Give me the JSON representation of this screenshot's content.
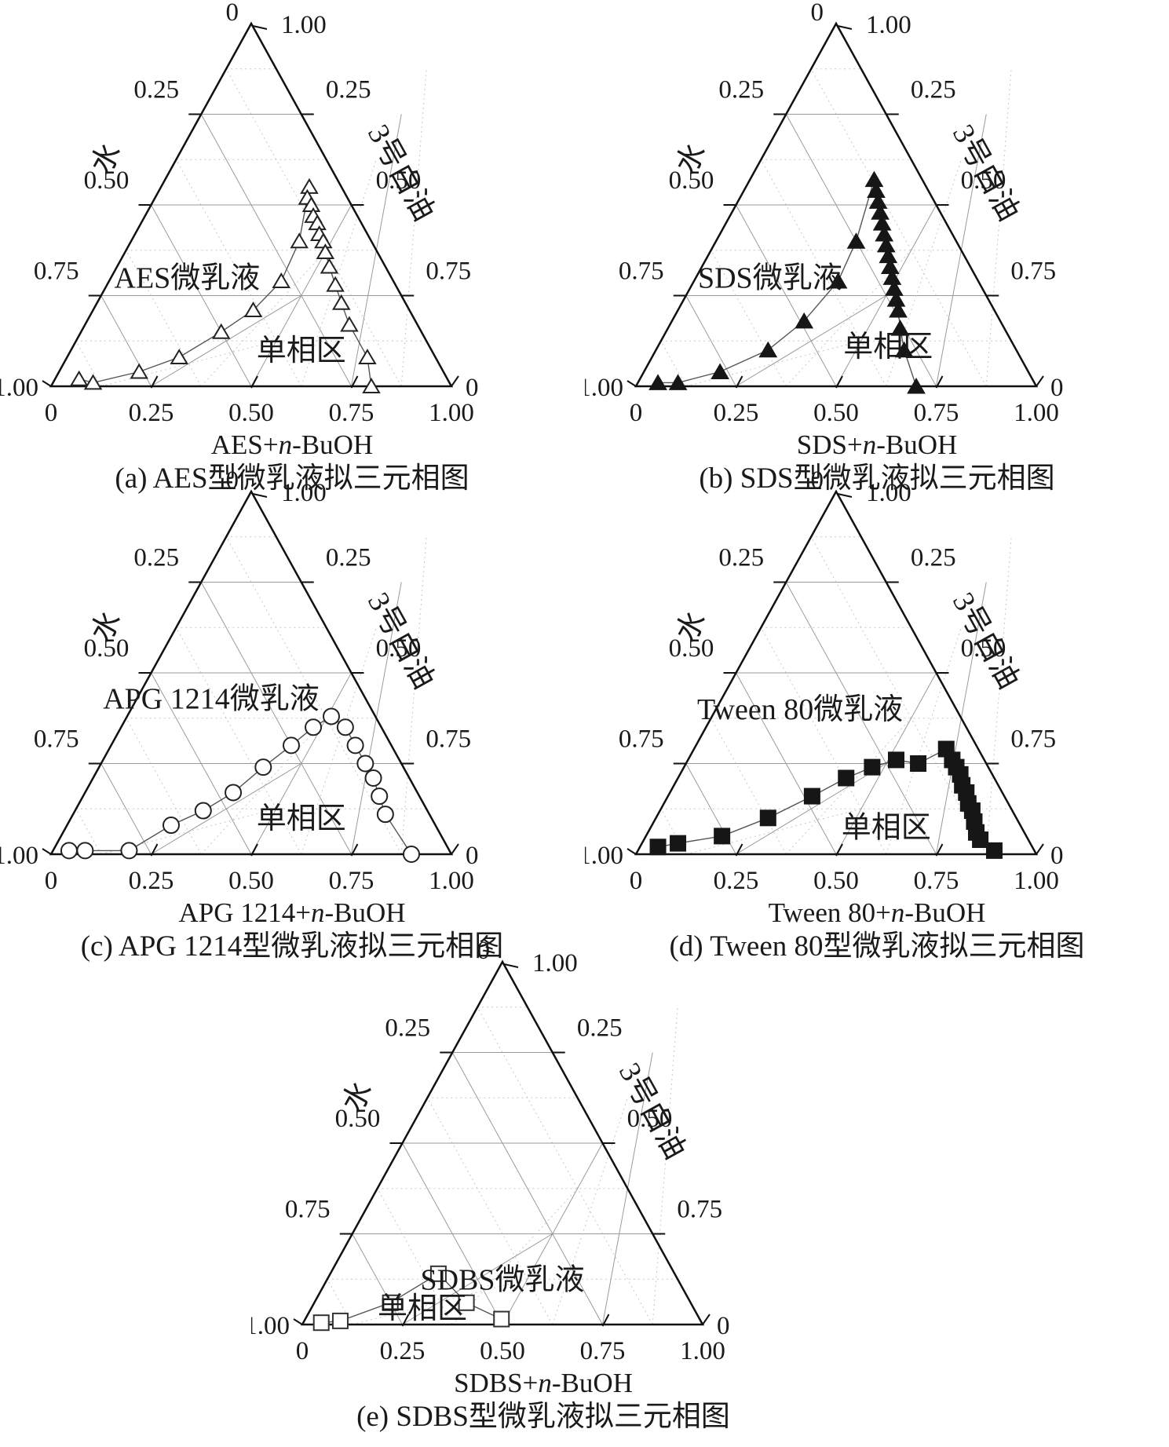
{
  "chart_data": {
    "type": "scatter",
    "chart_type": "ternary-phase-diagram-grid",
    "colors": {
      "edge": "#111111",
      "grid_solid": "#9a9a9a",
      "grid_dotted": "#c8c8c8",
      "boundary_line": "#555555",
      "marker": "#161616",
      "text": "#1a1a1a"
    },
    "axes": {
      "water_label": "水",
      "oil_label": "3号白油",
      "bottom_ticks": [
        "0",
        "0.25",
        "0.50",
        "0.75",
        "1.00"
      ],
      "left_ticks": [
        "0.25",
        "0.50",
        "0.75"
      ],
      "right_ticks": [
        "0.75",
        "0.50",
        "0.25"
      ],
      "apex_left_label": "0",
      "apex_right_label": "1.00",
      "bottom_left_corner_label": "1.00",
      "bottom_right_corner_label": "0",
      "grid_solid_step": 0.25,
      "grid_dotted_step": 0.125
    },
    "panels": [
      {
        "id": "a",
        "caption": "(a) AES型微乳液拟三元相图",
        "axis_title_prefix": "AES+",
        "axis_title_italic": "n",
        "axis_title_suffix": "-BuOH",
        "marker": "triangle-open",
        "region_labels": [
          {
            "text": "AES微乳液",
            "pos": 0.34,
            "oil": 0.3
          },
          {
            "text": "单相区",
            "pos": 0.625,
            "oil": 0.1
          }
        ],
        "points_surfactant_oil": [
          [
            0.06,
            0.02
          ],
          [
            0.1,
            0.01
          ],
          [
            0.2,
            0.04
          ],
          [
            0.28,
            0.08
          ],
          [
            0.35,
            0.15
          ],
          [
            0.4,
            0.21
          ],
          [
            0.43,
            0.29
          ],
          [
            0.42,
            0.4
          ],
          [
            0.37,
            0.55
          ],
          [
            0.38,
            0.52
          ],
          [
            0.4,
            0.5
          ],
          [
            0.42,
            0.47
          ],
          [
            0.44,
            0.45
          ],
          [
            0.46,
            0.42
          ],
          [
            0.48,
            0.4
          ],
          [
            0.5,
            0.37
          ],
          [
            0.53,
            0.33
          ],
          [
            0.57,
            0.28
          ],
          [
            0.61,
            0.23
          ],
          [
            0.66,
            0.17
          ],
          [
            0.75,
            0.08
          ],
          [
            0.8,
            0.0
          ]
        ]
      },
      {
        "id": "b",
        "caption": "(b) SDS型微乳液拟三元相图",
        "axis_title_prefix": "SDS+",
        "axis_title_italic": "n",
        "axis_title_suffix": "-BuOH",
        "marker": "triangle-filled",
        "region_labels": [
          {
            "text": "SDS微乳液",
            "pos": 0.335,
            "oil": 0.3
          },
          {
            "text": "单相区",
            "pos": 0.63,
            "oil": 0.11
          }
        ],
        "points_surfactant_oil": [
          [
            0.05,
            0.01
          ],
          [
            0.1,
            0.01
          ],
          [
            0.19,
            0.04
          ],
          [
            0.28,
            0.1
          ],
          [
            0.33,
            0.18
          ],
          [
            0.36,
            0.29
          ],
          [
            0.35,
            0.4
          ],
          [
            0.31,
            0.57
          ],
          [
            0.33,
            0.54
          ],
          [
            0.35,
            0.51
          ],
          [
            0.37,
            0.48
          ],
          [
            0.39,
            0.45
          ],
          [
            0.41,
            0.42
          ],
          [
            0.43,
            0.39
          ],
          [
            0.45,
            0.36
          ],
          [
            0.47,
            0.33
          ],
          [
            0.49,
            0.3
          ],
          [
            0.51,
            0.27
          ],
          [
            0.53,
            0.24
          ],
          [
            0.55,
            0.21
          ],
          [
            0.58,
            0.16
          ],
          [
            0.62,
            0.1
          ],
          [
            0.7,
            0.0
          ]
        ]
      },
      {
        "id": "c",
        "caption": "(c) APG 1214型微乳液拟三元相图",
        "axis_title_prefix": "APG 1214+",
        "axis_title_italic": "n",
        "axis_title_suffix": "-BuOH",
        "marker": "circle-open",
        "region_labels": [
          {
            "text": "APG 1214微乳液",
            "pos": 0.4,
            "oil": 0.43
          },
          {
            "text": "单相区",
            "pos": 0.625,
            "oil": 0.1
          }
        ],
        "points_surfactant_oil": [
          [
            0.04,
            0.01
          ],
          [
            0.08,
            0.01
          ],
          [
            0.19,
            0.01
          ],
          [
            0.26,
            0.08
          ],
          [
            0.32,
            0.12
          ],
          [
            0.37,
            0.17
          ],
          [
            0.41,
            0.24
          ],
          [
            0.45,
            0.3
          ],
          [
            0.48,
            0.35
          ],
          [
            0.51,
            0.38
          ],
          [
            0.56,
            0.35
          ],
          [
            0.61,
            0.3
          ],
          [
            0.66,
            0.25
          ],
          [
            0.7,
            0.21
          ],
          [
            0.74,
            0.16
          ],
          [
            0.78,
            0.11
          ],
          [
            0.9,
            0.0
          ]
        ]
      },
      {
        "id": "d",
        "caption": "(d) Tween 80型微乳液拟三元相图",
        "axis_title_prefix": "Tween 80+",
        "axis_title_italic": "n",
        "axis_title_suffix": "-BuOH",
        "marker": "square-filled",
        "region_labels": [
          {
            "text": "Tween 80微乳液",
            "pos": 0.41,
            "oil": 0.4
          },
          {
            "text": "单相区",
            "pos": 0.625,
            "oil": 0.075
          }
        ],
        "points_surfactant_oil": [
          [
            0.045,
            0.02
          ],
          [
            0.09,
            0.03
          ],
          [
            0.19,
            0.05
          ],
          [
            0.28,
            0.1
          ],
          [
            0.36,
            0.16
          ],
          [
            0.42,
            0.21
          ],
          [
            0.47,
            0.24
          ],
          [
            0.52,
            0.26
          ],
          [
            0.58,
            0.25
          ],
          [
            0.63,
            0.29
          ],
          [
            0.66,
            0.26
          ],
          [
            0.68,
            0.24
          ],
          [
            0.7,
            0.22
          ],
          [
            0.72,
            0.19
          ],
          [
            0.74,
            0.17
          ],
          [
            0.76,
            0.14
          ],
          [
            0.78,
            0.12
          ],
          [
            0.8,
            0.09
          ],
          [
            0.82,
            0.06
          ],
          [
            0.84,
            0.04
          ],
          [
            0.89,
            0.01
          ]
        ]
      },
      {
        "id": "e",
        "caption": "(e) SDBS型微乳液拟三元相图",
        "axis_title_prefix": "SDBS+",
        "axis_title_italic": "n",
        "axis_title_suffix": "-BuOH",
        "marker": "square-open",
        "region_labels": [
          {
            "text": "SDBS微乳液",
            "pos": 0.5,
            "oil": 0.125
          },
          {
            "text": "单相区",
            "pos": 0.3,
            "oil": 0.045
          }
        ],
        "points_surfactant_oil": [
          [
            0.045,
            0.005
          ],
          [
            0.09,
            0.01
          ],
          [
            0.19,
            0.06
          ],
          [
            0.27,
            0.14
          ],
          [
            0.38,
            0.06
          ],
          [
            0.49,
            0.015
          ]
        ]
      }
    ]
  }
}
